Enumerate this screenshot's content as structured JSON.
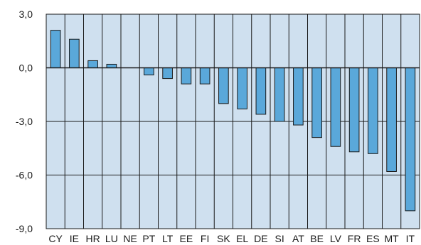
{
  "chart_data": {
    "type": "bar",
    "categories": [
      "CY",
      "IE",
      "HR",
      "LU",
      "NE",
      "PT",
      "LT",
      "EE",
      "FI",
      "SK",
      "EL",
      "DE",
      "SI",
      "AT",
      "BE",
      "LV",
      "FR",
      "ES",
      "MT",
      "IT"
    ],
    "values": [
      2.1,
      1.6,
      0.4,
      0.2,
      0.0,
      -0.4,
      -0.6,
      -0.9,
      -0.9,
      -2.0,
      -2.3,
      -2.6,
      -3.0,
      -3.2,
      -3.9,
      -4.4,
      -4.7,
      -4.8,
      -5.8,
      -8.0
    ],
    "ylim": [
      -9,
      3
    ],
    "yticks": [
      3,
      0,
      -3,
      -6,
      -9
    ],
    "ytick_labels": [
      "3,0",
      "0,0",
      "-3,0",
      "-6,0",
      "-9,0"
    ],
    "grid": true,
    "colors": {
      "plot_bg": "#cfe0ef",
      "bar": "#5aa8da",
      "bar_edge": "#1a1a1a",
      "grid": "#1a1a1a"
    }
  }
}
